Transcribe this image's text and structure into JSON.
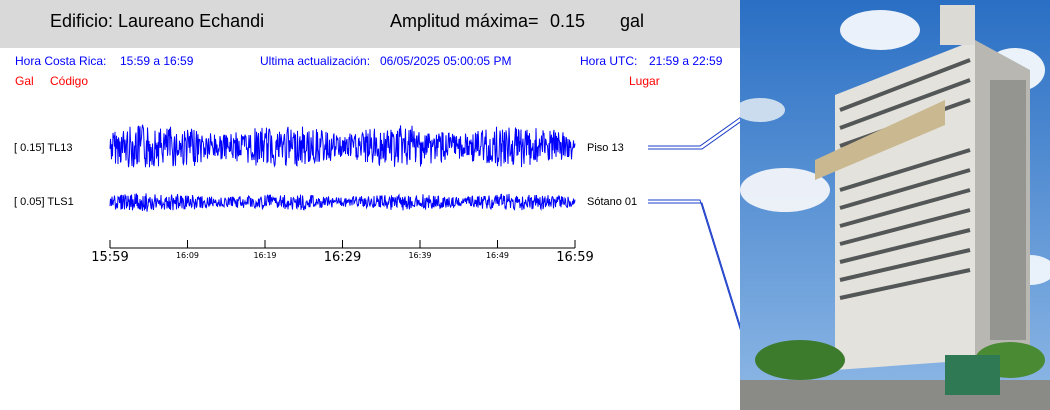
{
  "header": {
    "building": "Edificio: Laureano Echandi",
    "amplitude_label": "Amplitud máxima=",
    "amplitude_value": "0.15",
    "amplitude_unit": "gal"
  },
  "info": {
    "cr_time_label": "Hora Costa Rica:",
    "cr_time_range": "15:59 a 16:59",
    "update_label": "Ultima actualización:",
    "update_value": "06/05/2025 05:00:05 PM",
    "utc_label": "Hora UTC:",
    "utc_range": "21:59 a 22:59"
  },
  "columns": {
    "gal": "Gal",
    "code": "Código",
    "place": "Lugar"
  },
  "traces": [
    {
      "gal_code": "[   0.15] TL13",
      "place": "Piso 13",
      "amplitude": 0.15
    },
    {
      "gal_code": "[   0.05] TLS1",
      "place": "Sótano 01",
      "amplitude": 0.05
    }
  ],
  "time_axis": {
    "major_ticks": [
      "15:59",
      "16:29",
      "16:59"
    ],
    "minor_ticks": [
      "16:09",
      "16:19",
      "16:39",
      "16:49"
    ]
  },
  "colors": {
    "header_bg": "#d9d9d9",
    "info_text": "#0000ff",
    "column_text": "#ff0000",
    "trace": "#0000ff",
    "leader_line": "#1a3cc8"
  },
  "photo": {
    "description_icon": "building-photo"
  }
}
